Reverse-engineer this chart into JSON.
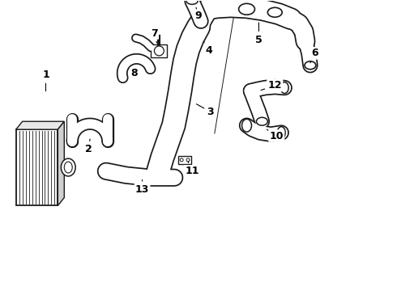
{
  "bg_color": "#ffffff",
  "line_color": "#1a1a1a",
  "label_color": "#000000",
  "label_fontsize": 9,
  "arrow_color": "#000000",
  "figsize": [
    4.9,
    3.6
  ],
  "dpi": 100
}
